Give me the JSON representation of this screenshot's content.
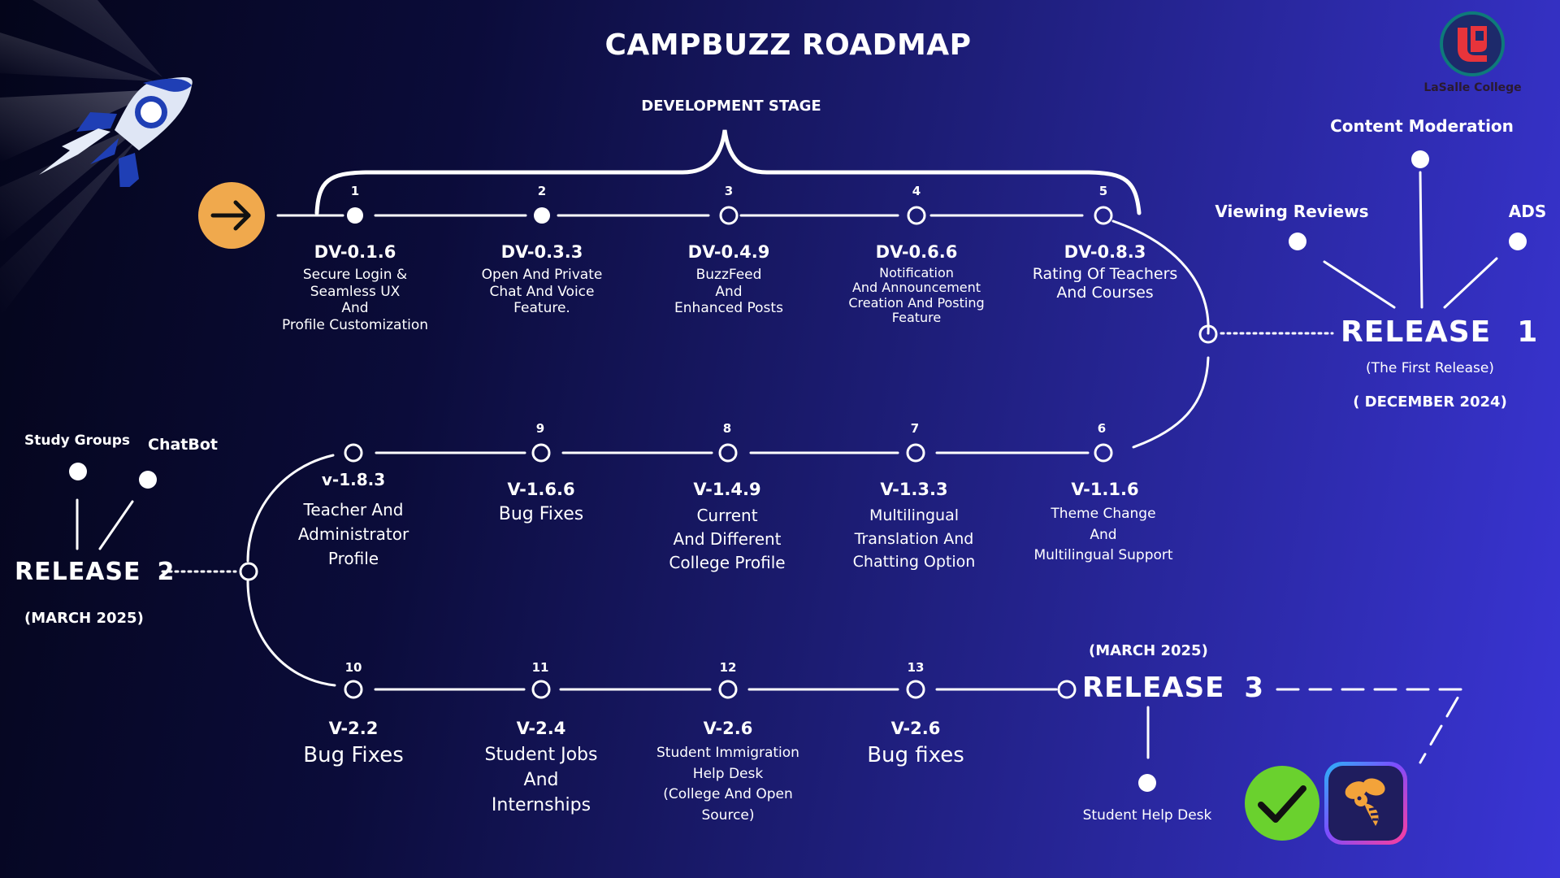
{
  "title": "CAMPBUZZ ROADMAP",
  "stage_label": "DEVELOPMENT STAGE",
  "logo": {
    "name": "LaSalle College"
  },
  "milestones": [
    {
      "num": "1",
      "version": "DV-0.1.6",
      "desc": [
        "Secure Login &",
        "Seamless UX",
        "And",
        "Profile Customization"
      ]
    },
    {
      "num": "2",
      "version": "DV-0.3.3",
      "desc": [
        "Open And Private",
        "Chat And Voice",
        "Feature."
      ]
    },
    {
      "num": "3",
      "version": "DV-0.4.9",
      "desc": [
        "BuzzFeed",
        "And",
        "Enhanced Posts"
      ]
    },
    {
      "num": "4",
      "version": "DV-0.6.6",
      "desc": [
        "Notification",
        "And Announcement",
        "Creation And Posting",
        "Feature"
      ]
    },
    {
      "num": "5",
      "version": "DV-0.8.3",
      "desc": [
        "Rating Of Teachers",
        "And Courses"
      ]
    },
    {
      "num": "6",
      "version": "V-1.1.6",
      "desc": [
        "Theme Change",
        "And",
        "Multilingual Support"
      ]
    },
    {
      "num": "7",
      "version": "V-1.3.3",
      "desc": [
        "Multilingual",
        "Translation And",
        "Chatting Option"
      ]
    },
    {
      "num": "8",
      "version": "V-1.4.9",
      "desc": [
        "Current",
        "And Different",
        "College Profile"
      ]
    },
    {
      "num": "9",
      "version": "V-1.6.6",
      "desc": [
        "Bug Fixes"
      ]
    },
    {
      "num": "",
      "version": "v-1.8.3",
      "desc": [
        "Teacher And",
        "Administrator",
        "Profile"
      ]
    },
    {
      "num": "10",
      "version": "V-2.2",
      "desc": [
        "Bug Fixes"
      ]
    },
    {
      "num": "11",
      "version": "V-2.4",
      "desc": [
        "Student Jobs",
        "And",
        "Internships"
      ]
    },
    {
      "num": "12",
      "version": "V-2.6",
      "desc": [
        "Student Immigration",
        "Help Desk",
        "(College And Open",
        "Source)"
      ]
    },
    {
      "num": "13",
      "version": "V-2.6",
      "desc": [
        "Bug fixes"
      ]
    }
  ],
  "release1": {
    "label": "RELEASE",
    "number": "1",
    "subtitle": "(The First Release)",
    "date": "( DECEMBER 2024)",
    "features": [
      "Content Moderation",
      "Viewing Reviews",
      "ADS"
    ]
  },
  "release2": {
    "label": "RELEASE",
    "number": "2",
    "date": "(MARCH 2025)",
    "features": [
      "Study Groups",
      "ChatBot"
    ]
  },
  "release3": {
    "label": "RELEASE",
    "number": "3",
    "date": "(MARCH 2025)",
    "features": [
      "Student Help Desk"
    ]
  },
  "icons": [
    "rocket-icon",
    "arrow-right-icon",
    "college-logo-icon",
    "checkmark-icon",
    "bee-app-icon"
  ],
  "colors": {
    "arrow_button": "#f0a94d",
    "check_badge": "#6ad12e",
    "background_start": "#04051a",
    "background_end": "#3a35d6"
  }
}
